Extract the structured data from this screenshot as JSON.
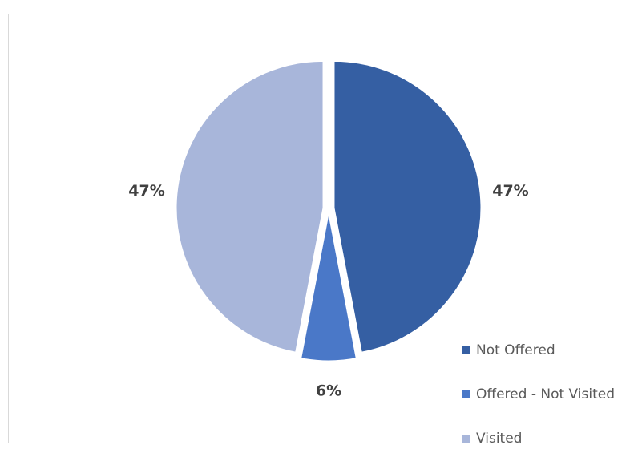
{
  "chart_data": {
    "type": "pie",
    "categories": [
      "Not Offered",
      "Offered - Not Visited",
      "Visited"
    ],
    "values": [
      47,
      6,
      47
    ],
    "value_labels": [
      "47%",
      "6%",
      "47%"
    ],
    "colors": [
      "#355fa3",
      "#4a78c8",
      "#a8b6da"
    ],
    "legend": "bottom-right"
  }
}
